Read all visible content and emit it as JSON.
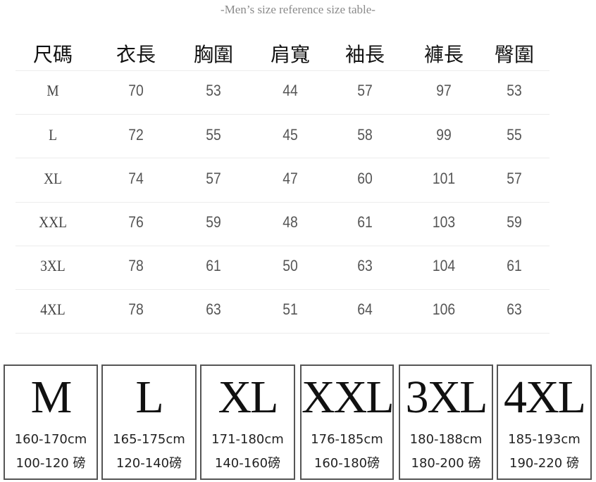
{
  "title": "-Men’s size reference size table-",
  "table": {
    "headers": [
      "尺碼",
      "衣長",
      "胸圍",
      "肩寬",
      "袖長",
      "褲長",
      "臀圍"
    ],
    "rows": [
      [
        "M",
        "70",
        "53",
        "44",
        "57",
        "97",
        "53"
      ],
      [
        "L",
        "72",
        "55",
        "45",
        "58",
        "99",
        "55"
      ],
      [
        "XL",
        "74",
        "57",
        "47",
        "60",
        "101",
        "57"
      ],
      [
        "XXL",
        "76",
        "59",
        "48",
        "61",
        "103",
        "59"
      ],
      [
        "3XL",
        "78",
        "61",
        "50",
        "63",
        "104",
        "61"
      ],
      [
        "4XL",
        "78",
        "63",
        "51",
        "64",
        "106",
        "63"
      ]
    ]
  },
  "cards": [
    {
      "size": "M",
      "height": "160-170cm",
      "weight": "100-120 磅"
    },
    {
      "size": "L",
      "height": "165-175cm",
      "weight": "120-140磅"
    },
    {
      "size": "XL",
      "height": "171-180cm",
      "weight": "140-160磅"
    },
    {
      "size": "XXL",
      "height": "176-185cm",
      "weight": "160-180磅"
    },
    {
      "size": "3XL",
      "height": "180-188cm",
      "weight": "180-200 磅"
    },
    {
      "size": "4XL",
      "height": "185-193cm",
      "weight": "190-220 磅"
    }
  ]
}
